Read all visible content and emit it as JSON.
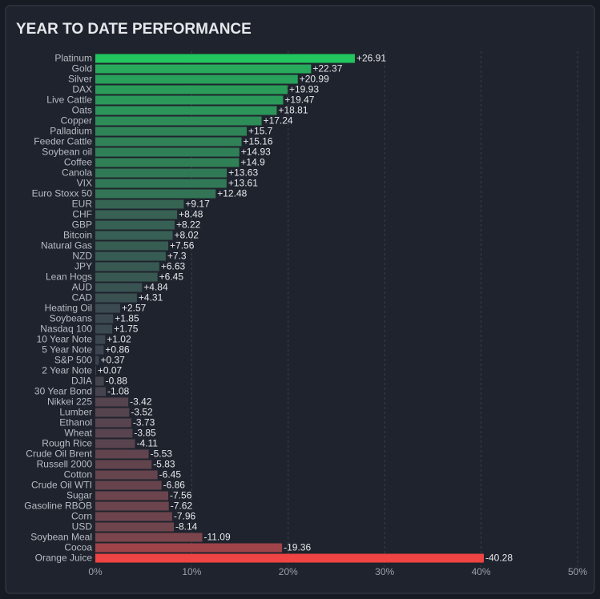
{
  "chart_data": {
    "type": "bar",
    "orientation": "horizontal",
    "title": "YEAR TO DATE PERFORMANCE",
    "categories": [
      "Platinum",
      "Gold",
      "Silver",
      "DAX",
      "Live Cattle",
      "Oats",
      "Copper",
      "Palladium",
      "Feeder Cattle",
      "Soybean oil",
      "Coffee",
      "Canola",
      "VIX",
      "Euro Stoxx 50",
      "EUR",
      "CHF",
      "GBP",
      "Bitcoin",
      "Natural Gas",
      "NZD",
      "JPY",
      "Lean Hogs",
      "AUD",
      "CAD",
      "Heating Oil",
      "Soybeans",
      "Nasdaq 100",
      "10 Year Note",
      "5 Year Note",
      "S&P 500",
      "2 Year Note",
      "DJIA",
      "30 Year Bond",
      "Nikkei 225",
      "Lumber",
      "Ethanol",
      "Wheat",
      "Rough Rice",
      "Crude Oil Brent",
      "Russell 2000",
      "Cotton",
      "Crude Oil WTI",
      "Sugar",
      "Gasoline RBOB",
      "Corn",
      "USD",
      "Soybean Meal",
      "Cocoa",
      "Orange Juice"
    ],
    "values": [
      26.91,
      22.37,
      20.99,
      19.93,
      19.47,
      18.81,
      17.24,
      15.7,
      15.16,
      14.93,
      14.9,
      13.63,
      13.61,
      12.48,
      9.17,
      8.48,
      8.22,
      8.02,
      7.56,
      7.3,
      6.63,
      6.45,
      4.84,
      4.31,
      2.57,
      1.85,
      1.75,
      1.02,
      0.86,
      0.37,
      0.07,
      -0.88,
      -1.08,
      -3.42,
      -3.52,
      -3.73,
      -3.85,
      -4.11,
      -5.53,
      -5.83,
      -6.45,
      -6.86,
      -7.56,
      -7.62,
      -7.96,
      -8.14,
      -11.09,
      -19.36,
      -40.28
    ],
    "value_labels": [
      "+26.91",
      "+22.37",
      "+20.99",
      "+19.93",
      "+19.47",
      "+18.81",
      "+17.24",
      "+15.7",
      "+15.16",
      "+14.93",
      "+14.9",
      "+13.63",
      "+13.61",
      "+12.48",
      "+9.17",
      "+8.48",
      "+8.22",
      "+8.02",
      "+7.56",
      "+7.3",
      "+6.63",
      "+6.45",
      "+4.84",
      "+4.31",
      "+2.57",
      "+1.85",
      "+1.75",
      "+1.02",
      "+0.86",
      "+0.37",
      "+0.07",
      "-0.88",
      "-1.08",
      "-3.42",
      "-3.52",
      "-3.73",
      "-3.85",
      "-4.11",
      "-5.53",
      "-5.83",
      "-6.45",
      "-6.86",
      "-7.56",
      "-7.62",
      "-7.96",
      "-8.14",
      "-11.09",
      "-19.36",
      "-40.28"
    ],
    "color_positive": "#22c55e",
    "color_zero": "#3c4450",
    "color_negative": "#ef4444",
    "xlim": [
      0,
      50
    ],
    "xticks": [
      {
        "value": 0,
        "label": "0%"
      },
      {
        "value": 10,
        "label": "10%"
      },
      {
        "value": 20,
        "label": "20%"
      },
      {
        "value": 30,
        "label": "30%"
      },
      {
        "value": 40,
        "label": "40%"
      },
      {
        "value": 50,
        "label": "50%"
      }
    ],
    "grid": true
  }
}
